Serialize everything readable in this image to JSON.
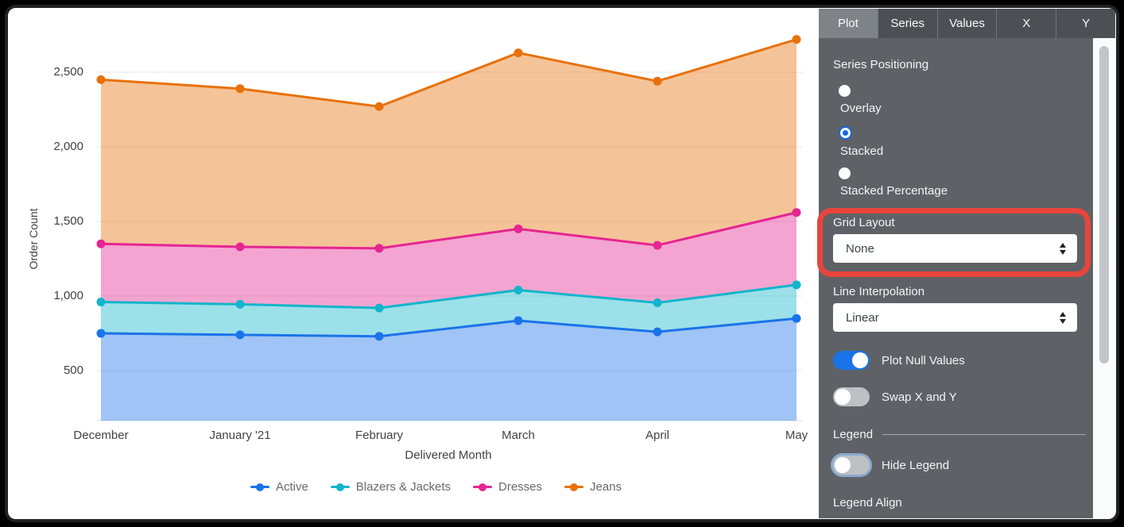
{
  "chart_data": {
    "type": "area",
    "stacking": "stacked",
    "x_categories": [
      "December",
      "January '21",
      "February",
      "March",
      "April",
      "May"
    ],
    "xlabel": "Delivered Month",
    "ylabel": "Order Count",
    "y_tick_labels": [
      "500",
      "1,000",
      "1,500",
      "2,000",
      "2,500"
    ],
    "y_tick_values": [
      500,
      1000,
      1500,
      2000,
      2500
    ],
    "grid": true,
    "legend_position": "bottom",
    "series": [
      {
        "name": "Active",
        "color": "#1A73E8",
        "values": [
          750,
          740,
          730,
          835,
          760,
          850
        ],
        "cumulative": [
          750,
          740,
          730,
          835,
          760,
          850
        ]
      },
      {
        "name": "Blazers & Jackets",
        "color": "#12B5CB",
        "values": [
          210,
          205,
          190,
          205,
          195,
          225
        ],
        "cumulative": [
          960,
          945,
          920,
          1040,
          955,
          1075
        ]
      },
      {
        "name": "Dresses",
        "color": "#E52592",
        "values": [
          390,
          385,
          400,
          410,
          385,
          485
        ],
        "cumulative": [
          1350,
          1330,
          1320,
          1450,
          1340,
          1560
        ]
      },
      {
        "name": "Jeans",
        "color": "#E8710A",
        "values": [
          1100,
          1060,
          950,
          1180,
          1100,
          1160
        ],
        "cumulative": [
          2450,
          2390,
          2270,
          2630,
          2440,
          2720
        ]
      }
    ]
  },
  "panel": {
    "tabs": [
      {
        "label": "Plot",
        "active": true
      },
      {
        "label": "Series",
        "active": false
      },
      {
        "label": "Values",
        "active": false
      },
      {
        "label": "X",
        "active": false
      },
      {
        "label": "Y",
        "active": false
      }
    ],
    "series_positioning": {
      "label": "Series Positioning",
      "options": [
        {
          "label": "Overlay",
          "selected": false
        },
        {
          "label": "Stacked",
          "selected": true
        },
        {
          "label": "Stacked Percentage",
          "selected": false
        }
      ]
    },
    "grid_layout": {
      "label": "Grid Layout",
      "value": "None",
      "highlighted": true
    },
    "line_interpolation": {
      "label": "Line Interpolation",
      "value": "Linear"
    },
    "plot_null_values": {
      "label": "Plot Null Values",
      "on": true
    },
    "swap_x_and_y": {
      "label": "Swap X and Y",
      "on": false
    },
    "legend": {
      "section_title": "Legend",
      "hide_legend": {
        "label": "Hide Legend",
        "on": false,
        "focus_ring": true
      },
      "legend_align_label": "Legend Align"
    }
  },
  "colors": {
    "accent_blue": "#1A73E8",
    "toggle_off": "#BDC1C6",
    "panel_bg": "#5E6266",
    "tab_bar_bg": "#4C5054",
    "tab_active_bg": "#7E8388",
    "highlight_red": "#E8453C",
    "grid_line": "#E7E7E7",
    "axis_text": "#424242",
    "legend_text": "#696969"
  }
}
